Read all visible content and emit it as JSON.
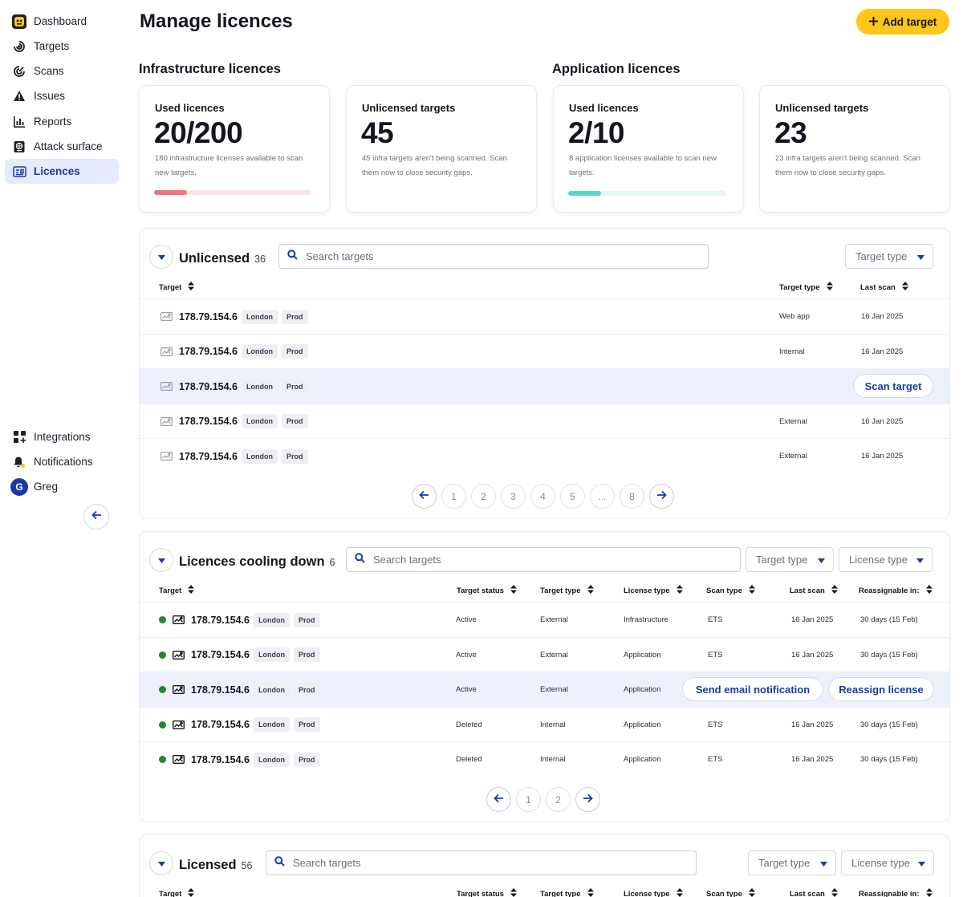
{
  "sidebar": {
    "items": [
      {
        "label": "Dashboard",
        "icon": "dashboard-logo-icon"
      },
      {
        "label": "Targets",
        "icon": "target-icon"
      },
      {
        "label": "Scans",
        "icon": "radar-icon"
      },
      {
        "label": "Issues",
        "icon": "warning-icon"
      },
      {
        "label": "Reports",
        "icon": "bar-chart-icon"
      },
      {
        "label": "Attack surface",
        "icon": "globe-icon"
      },
      {
        "label": "Licences",
        "icon": "license-icon",
        "active": true
      }
    ],
    "bottom": {
      "integrations": "Integrations",
      "notifications": "Notifications",
      "user_name": "Greg",
      "user_initial": "G"
    }
  },
  "header": {
    "title": "Manage licences",
    "add_target_label": "Add target"
  },
  "infrastructure": {
    "heading": "Infrastructure licences",
    "used": {
      "label": "Used licences",
      "value": "20/200",
      "desc": "180 infrastructure licenses available to scan new targets.",
      "fraction": 0.1
    },
    "unlicensed": {
      "label": "Unlicensed targets",
      "value": "45",
      "desc": "45 infra targets aren't being scanned. Scan them now to close security gaps."
    }
  },
  "application": {
    "heading": "Application licences",
    "used": {
      "label": "Used licences",
      "value": "2/10",
      "desc": "8 application licenses available to scan new targets.",
      "fraction": 0.2
    },
    "unlicensed": {
      "label": "Unlicensed targets",
      "value": "23",
      "desc": "23 infra targets aren't being scanned. Scan them now to close security gaps."
    }
  },
  "colors": {
    "accent": "#1a3aa6",
    "primary_button": "#ffc61a",
    "infra_bar_fill": "#f07381",
    "infra_bar_track": "#fbe3e6",
    "app_bar_fill": "#5ad6c5",
    "app_bar_track": "#e3f8f4",
    "status_dot": "#1e8a2e"
  },
  "unlicensed_table": {
    "title": "Unlicensed",
    "count": "36",
    "search_placeholder": "Search targets",
    "filter_target_type": "Target type",
    "columns": {
      "target": "Target",
      "target_type": "Target type",
      "last_scan": "Last scan"
    },
    "rows": [
      {
        "ip": "178.79.154.6",
        "tags": [
          "London",
          "Prod"
        ],
        "target_type": "Web app",
        "last_scan": "16 Jan 2025"
      },
      {
        "ip": "178.79.154.6",
        "tags": [
          "London",
          "Prod"
        ],
        "target_type": "Internal",
        "last_scan": "16 Jan 2025"
      },
      {
        "ip": "178.79.154.6",
        "tags": [
          "London",
          "Prod"
        ],
        "target_type": "",
        "last_scan": "",
        "action": "Scan target"
      },
      {
        "ip": "178.79.154.6",
        "tags": [
          "London",
          "Prod"
        ],
        "target_type": "External",
        "last_scan": "16 Jan 2025"
      },
      {
        "ip": "178.79.154.6",
        "tags": [
          "London",
          "Prod"
        ],
        "target_type": "External",
        "last_scan": "16 Jan 2025"
      }
    ],
    "pages": [
      "1",
      "2",
      "3",
      "4",
      "5",
      "...",
      "8"
    ]
  },
  "cooling_table": {
    "title": "Licences cooling down",
    "count": "6",
    "search_placeholder": "Search targets",
    "filter_target_type": "Target type",
    "filter_license_type": "License type",
    "columns": {
      "target": "Target",
      "target_status": "Target status",
      "target_type": "Target type",
      "license_type": "License type",
      "scan_type": "Scan type",
      "last_scan": "Last scan",
      "reassignable": "Reassignable in:"
    },
    "rows": [
      {
        "ip": "178.79.154.6",
        "tags": [
          "London",
          "Prod"
        ],
        "status": "Active",
        "target_type": "External",
        "license_type": "Infrastructure",
        "scan_type": "ETS",
        "last_scan": "16 Jan 2025",
        "reassignable": "30 days (15 Feb)"
      },
      {
        "ip": "178.79.154.6",
        "tags": [
          "London",
          "Prod"
        ],
        "status": "Active",
        "target_type": "External",
        "license_type": "Application",
        "scan_type": "ETS",
        "last_scan": "16 Jan 2025",
        "reassignable": "30 days (15 Feb)"
      },
      {
        "ip": "178.79.154.6",
        "tags": [
          "London",
          "Prod"
        ],
        "status": "Active",
        "target_type": "External",
        "license_type": "Application",
        "scan_type": "",
        "last_scan": "",
        "reassignable": "",
        "actions": [
          "Send email notification",
          "Reassign license"
        ]
      },
      {
        "ip": "178.79.154.6",
        "tags": [
          "London",
          "Prod"
        ],
        "status": "Deleted",
        "target_type": "Internal",
        "license_type": "Application",
        "scan_type": "ETS",
        "last_scan": "16 Jan 2025",
        "reassignable": "30 days (15 Feb)"
      },
      {
        "ip": "178.79.154.6",
        "tags": [
          "London",
          "Prod"
        ],
        "status": "Deleted",
        "target_type": "Internal",
        "license_type": "Application",
        "scan_type": "ETS",
        "last_scan": "16 Jan 2025",
        "reassignable": "30 days (15 Feb)"
      }
    ],
    "pages": [
      "1",
      "2"
    ]
  },
  "licensed_table": {
    "title": "Licensed",
    "count": "56",
    "search_placeholder": "Search targets",
    "filter_target_type": "Target type",
    "filter_license_type": "License type",
    "columns": {
      "target": "Target",
      "target_status": "Target status",
      "target_type": "Target type",
      "license_type": "License type",
      "scan_type": "Scan type",
      "last_scan": "Last scan",
      "reassignable": "Reassignable in:"
    }
  }
}
